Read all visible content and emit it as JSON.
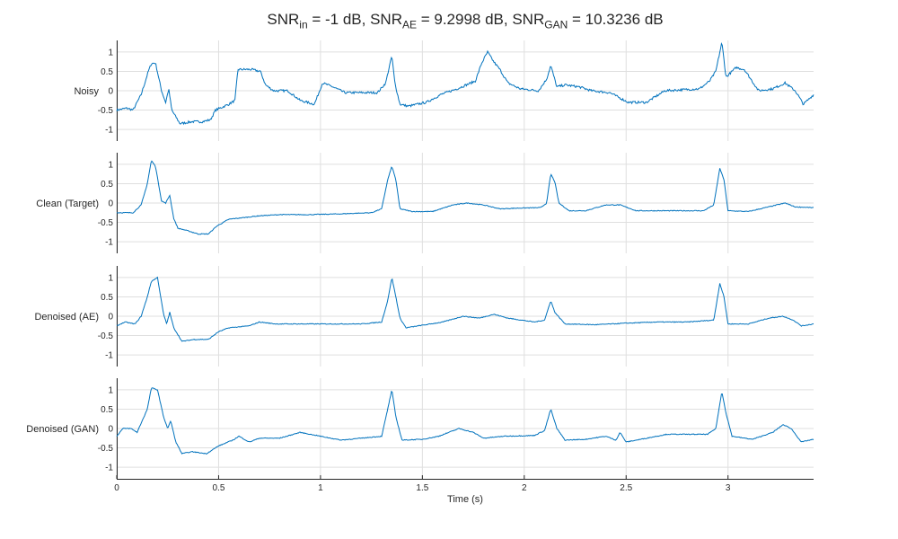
{
  "title": {
    "p1": "SNR",
    "s1": "in",
    "t1": " = -1 dB, ",
    "p2": "SNR",
    "s2": "AE",
    "t2": " = 9.2998 dB, ",
    "p3": "SNR",
    "s3": "GAN",
    "t3": " = 10.3236 dB"
  },
  "chart_data": {
    "type": "line",
    "xlabel": "Time (s)",
    "xlim": [
      0,
      3.42
    ],
    "ylim": [
      -1.3,
      1.3
    ],
    "xticks": [
      "0",
      "0.5",
      "1",
      "1.5",
      "2",
      "2.5",
      "3"
    ],
    "xtick_values": [
      0,
      0.5,
      1,
      1.5,
      2,
      2.5,
      3
    ],
    "yticks": [
      "1",
      "0.5",
      "0",
      "-0.5",
      "-1"
    ],
    "ytick_values": [
      1,
      0.5,
      0,
      -0.5,
      -1
    ],
    "grid": true,
    "line_color": "#0072BD",
    "subplots": [
      {
        "ylabel": "Noisy",
        "points": [
          [
            0,
            -0.5
          ],
          [
            0.05,
            -0.45
          ],
          [
            0.08,
            -0.5
          ],
          [
            0.12,
            -0.1
          ],
          [
            0.155,
            0.5
          ],
          [
            0.17,
            0.7
          ],
          [
            0.19,
            0.72
          ],
          [
            0.22,
            0
          ],
          [
            0.24,
            -0.3
          ],
          [
            0.255,
            0.05
          ],
          [
            0.27,
            -0.5
          ],
          [
            0.31,
            -0.85
          ],
          [
            0.37,
            -0.8
          ],
          [
            0.42,
            -0.8
          ],
          [
            0.46,
            -0.75
          ],
          [
            0.485,
            -0.5
          ],
          [
            0.55,
            -0.35
          ],
          [
            0.58,
            -0.25
          ],
          [
            0.595,
            0.55
          ],
          [
            0.66,
            0.55
          ],
          [
            0.705,
            0.5
          ],
          [
            0.73,
            0.15
          ],
          [
            0.77,
            0
          ],
          [
            0.84,
            0
          ],
          [
            0.9,
            -0.25
          ],
          [
            0.97,
            -0.35
          ],
          [
            1.01,
            0.2
          ],
          [
            1.06,
            0.1
          ],
          [
            1.12,
            -0.05
          ],
          [
            1.28,
            -0.05
          ],
          [
            1.32,
            0.2
          ],
          [
            1.35,
            0.9
          ],
          [
            1.365,
            0.2
          ],
          [
            1.39,
            -0.35
          ],
          [
            1.43,
            -0.4
          ],
          [
            1.52,
            -0.3
          ],
          [
            1.59,
            -0.1
          ],
          [
            1.67,
            0.05
          ],
          [
            1.76,
            0.25
          ],
          [
            1.79,
            0.7
          ],
          [
            1.82,
            1.0
          ],
          [
            1.85,
            0.75
          ],
          [
            1.88,
            0.55
          ],
          [
            1.92,
            0.2
          ],
          [
            1.98,
            0.05
          ],
          [
            2.07,
            0
          ],
          [
            2.11,
            0.3
          ],
          [
            2.13,
            0.65
          ],
          [
            2.16,
            0.1
          ],
          [
            2.2,
            0.15
          ],
          [
            2.27,
            0.1
          ],
          [
            2.33,
            0
          ],
          [
            2.42,
            -0.05
          ],
          [
            2.51,
            -0.3
          ],
          [
            2.6,
            -0.3
          ],
          [
            2.69,
            0
          ],
          [
            2.86,
            0.05
          ],
          [
            2.91,
            0.25
          ],
          [
            2.94,
            0.5
          ],
          [
            2.97,
            1.25
          ],
          [
            2.99,
            0.35
          ],
          [
            3.04,
            0.6
          ],
          [
            3.08,
            0.55
          ],
          [
            3.15,
            0
          ],
          [
            3.22,
            0.05
          ],
          [
            3.28,
            0.2
          ],
          [
            3.33,
            0
          ],
          [
            3.37,
            -0.35
          ],
          [
            3.42,
            -0.1
          ]
        ]
      },
      {
        "ylabel": "Clean (Target)",
        "points": [
          [
            0,
            -0.25
          ],
          [
            0.08,
            -0.25
          ],
          [
            0.12,
            -0.05
          ],
          [
            0.15,
            0.5
          ],
          [
            0.17,
            1.1
          ],
          [
            0.19,
            0.95
          ],
          [
            0.22,
            0.05
          ],
          [
            0.24,
            0
          ],
          [
            0.26,
            0.2
          ],
          [
            0.28,
            -0.4
          ],
          [
            0.3,
            -0.65
          ],
          [
            0.35,
            -0.72
          ],
          [
            0.4,
            -0.8
          ],
          [
            0.45,
            -0.8
          ],
          [
            0.49,
            -0.6
          ],
          [
            0.55,
            -0.42
          ],
          [
            0.7,
            -0.33
          ],
          [
            0.8,
            -0.3
          ],
          [
            0.95,
            -0.3
          ],
          [
            1.1,
            -0.28
          ],
          [
            1.25,
            -0.25
          ],
          [
            1.3,
            -0.15
          ],
          [
            1.33,
            0.6
          ],
          [
            1.35,
            0.95
          ],
          [
            1.37,
            0.6
          ],
          [
            1.39,
            -0.15
          ],
          [
            1.45,
            -0.22
          ],
          [
            1.55,
            -0.22
          ],
          [
            1.65,
            -0.05
          ],
          [
            1.72,
            0
          ],
          [
            1.8,
            -0.05
          ],
          [
            1.88,
            -0.15
          ],
          [
            1.98,
            -0.13
          ],
          [
            2.08,
            -0.12
          ],
          [
            2.11,
            0
          ],
          [
            2.13,
            0.75
          ],
          [
            2.15,
            0.55
          ],
          [
            2.17,
            0
          ],
          [
            2.22,
            -0.2
          ],
          [
            2.3,
            -0.2
          ],
          [
            2.4,
            -0.05
          ],
          [
            2.47,
            -0.05
          ],
          [
            2.55,
            -0.2
          ],
          [
            2.7,
            -0.2
          ],
          [
            2.88,
            -0.2
          ],
          [
            2.93,
            -0.05
          ],
          [
            2.96,
            0.9
          ],
          [
            2.98,
            0.6
          ],
          [
            3.0,
            -0.2
          ],
          [
            3.1,
            -0.22
          ],
          [
            3.2,
            -0.1
          ],
          [
            3.28,
            0
          ],
          [
            3.33,
            -0.1
          ],
          [
            3.42,
            -0.12
          ]
        ]
      },
      {
        "ylabel": "Denoised (AE)",
        "points": [
          [
            0,
            -0.25
          ],
          [
            0.04,
            -0.15
          ],
          [
            0.09,
            -0.2
          ],
          [
            0.12,
            0
          ],
          [
            0.15,
            0.5
          ],
          [
            0.17,
            0.9
          ],
          [
            0.2,
            1.0
          ],
          [
            0.23,
            0.05
          ],
          [
            0.245,
            -0.2
          ],
          [
            0.26,
            0.1
          ],
          [
            0.28,
            -0.3
          ],
          [
            0.32,
            -0.65
          ],
          [
            0.38,
            -0.6
          ],
          [
            0.45,
            -0.6
          ],
          [
            0.5,
            -0.4
          ],
          [
            0.55,
            -0.3
          ],
          [
            0.65,
            -0.25
          ],
          [
            0.7,
            -0.15
          ],
          [
            0.78,
            -0.2
          ],
          [
            0.9,
            -0.2
          ],
          [
            1.05,
            -0.2
          ],
          [
            1.2,
            -0.2
          ],
          [
            1.3,
            -0.15
          ],
          [
            1.33,
            0.4
          ],
          [
            1.35,
            1.0
          ],
          [
            1.37,
            0.5
          ],
          [
            1.39,
            -0.05
          ],
          [
            1.42,
            -0.3
          ],
          [
            1.48,
            -0.25
          ],
          [
            1.6,
            -0.15
          ],
          [
            1.7,
            0
          ],
          [
            1.78,
            -0.05
          ],
          [
            1.85,
            0.05
          ],
          [
            1.92,
            -0.05
          ],
          [
            2.05,
            -0.15
          ],
          [
            2.1,
            -0.1
          ],
          [
            2.13,
            0.4
          ],
          [
            2.15,
            0.1
          ],
          [
            2.2,
            -0.2
          ],
          [
            2.35,
            -0.22
          ],
          [
            2.5,
            -0.18
          ],
          [
            2.65,
            -0.15
          ],
          [
            2.8,
            -0.15
          ],
          [
            2.93,
            -0.1
          ],
          [
            2.96,
            0.85
          ],
          [
            2.98,
            0.5
          ],
          [
            3.0,
            -0.2
          ],
          [
            3.1,
            -0.2
          ],
          [
            3.2,
            -0.05
          ],
          [
            3.27,
            0
          ],
          [
            3.32,
            -0.1
          ],
          [
            3.36,
            -0.25
          ],
          [
            3.42,
            -0.2
          ]
        ]
      },
      {
        "ylabel": "Denoised (GAN)",
        "points": [
          [
            0,
            -0.2
          ],
          [
            0.03,
            0
          ],
          [
            0.07,
            0
          ],
          [
            0.1,
            -0.1
          ],
          [
            0.15,
            0.5
          ],
          [
            0.17,
            1.05
          ],
          [
            0.2,
            1.0
          ],
          [
            0.23,
            0.3
          ],
          [
            0.25,
            0
          ],
          [
            0.265,
            0.2
          ],
          [
            0.29,
            -0.35
          ],
          [
            0.32,
            -0.65
          ],
          [
            0.37,
            -0.6
          ],
          [
            0.44,
            -0.65
          ],
          [
            0.5,
            -0.45
          ],
          [
            0.57,
            -0.3
          ],
          [
            0.6,
            -0.2
          ],
          [
            0.65,
            -0.35
          ],
          [
            0.7,
            -0.25
          ],
          [
            0.8,
            -0.25
          ],
          [
            0.9,
            -0.1
          ],
          [
            1.0,
            -0.2
          ],
          [
            1.1,
            -0.3
          ],
          [
            1.2,
            -0.25
          ],
          [
            1.3,
            -0.2
          ],
          [
            1.33,
            0.5
          ],
          [
            1.35,
            1.0
          ],
          [
            1.37,
            0.3
          ],
          [
            1.4,
            -0.3
          ],
          [
            1.5,
            -0.28
          ],
          [
            1.58,
            -0.2
          ],
          [
            1.68,
            0
          ],
          [
            1.75,
            -0.1
          ],
          [
            1.8,
            -0.25
          ],
          [
            1.9,
            -0.2
          ],
          [
            2.05,
            -0.18
          ],
          [
            2.1,
            -0.05
          ],
          [
            2.13,
            0.5
          ],
          [
            2.16,
            0
          ],
          [
            2.2,
            -0.3
          ],
          [
            2.3,
            -0.28
          ],
          [
            2.4,
            -0.2
          ],
          [
            2.45,
            -0.3
          ],
          [
            2.47,
            -0.1
          ],
          [
            2.5,
            -0.35
          ],
          [
            2.6,
            -0.25
          ],
          [
            2.7,
            -0.15
          ],
          [
            2.9,
            -0.15
          ],
          [
            2.94,
            0
          ],
          [
            2.97,
            0.95
          ],
          [
            2.99,
            0.4
          ],
          [
            3.02,
            -0.2
          ],
          [
            3.12,
            -0.28
          ],
          [
            3.22,
            -0.1
          ],
          [
            3.27,
            0.1
          ],
          [
            3.31,
            0
          ],
          [
            3.36,
            -0.35
          ],
          [
            3.4,
            -0.3
          ],
          [
            3.42,
            -0.28
          ]
        ]
      }
    ]
  }
}
